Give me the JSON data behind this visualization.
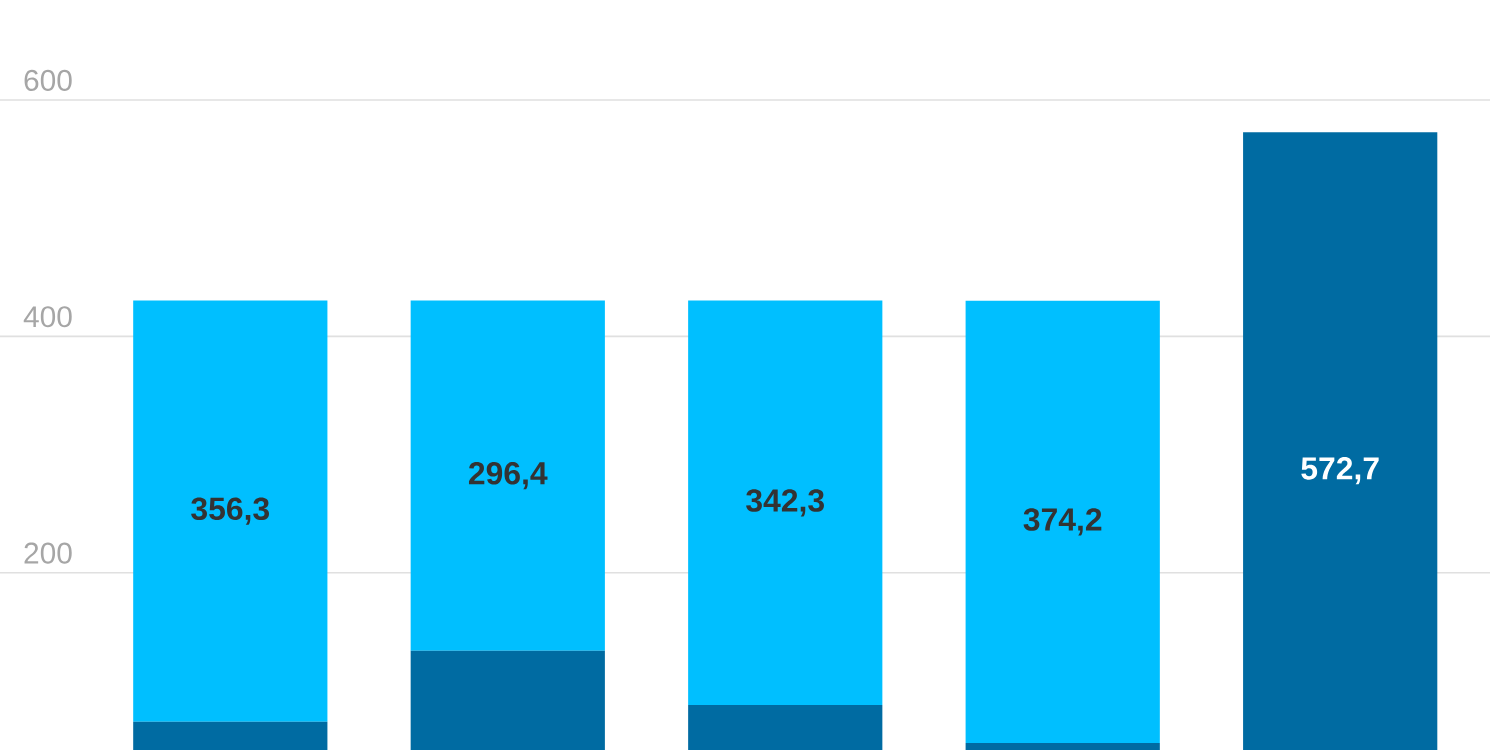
{
  "chart_data": {
    "type": "bar",
    "stacked": true,
    "categories": [
      null,
      null,
      null,
      null,
      null
    ],
    "series": [
      {
        "color": "#006ba2",
        "values": [
          74,
          134,
          88,
          56,
          572.7
        ],
        "value_labels": [
          null,
          null,
          null,
          null,
          "572,7"
        ]
      },
      {
        "color": "#00bfff",
        "values": [
          356.3,
          296.4,
          342.3,
          374.2,
          null
        ],
        "value_labels": [
          "356,3",
          "296,4",
          "342,3",
          "374,2",
          null
        ]
      }
    ],
    "ylim": [
      50,
      600
    ],
    "yticks": [
      200,
      400,
      600
    ],
    "grid": "y"
  }
}
